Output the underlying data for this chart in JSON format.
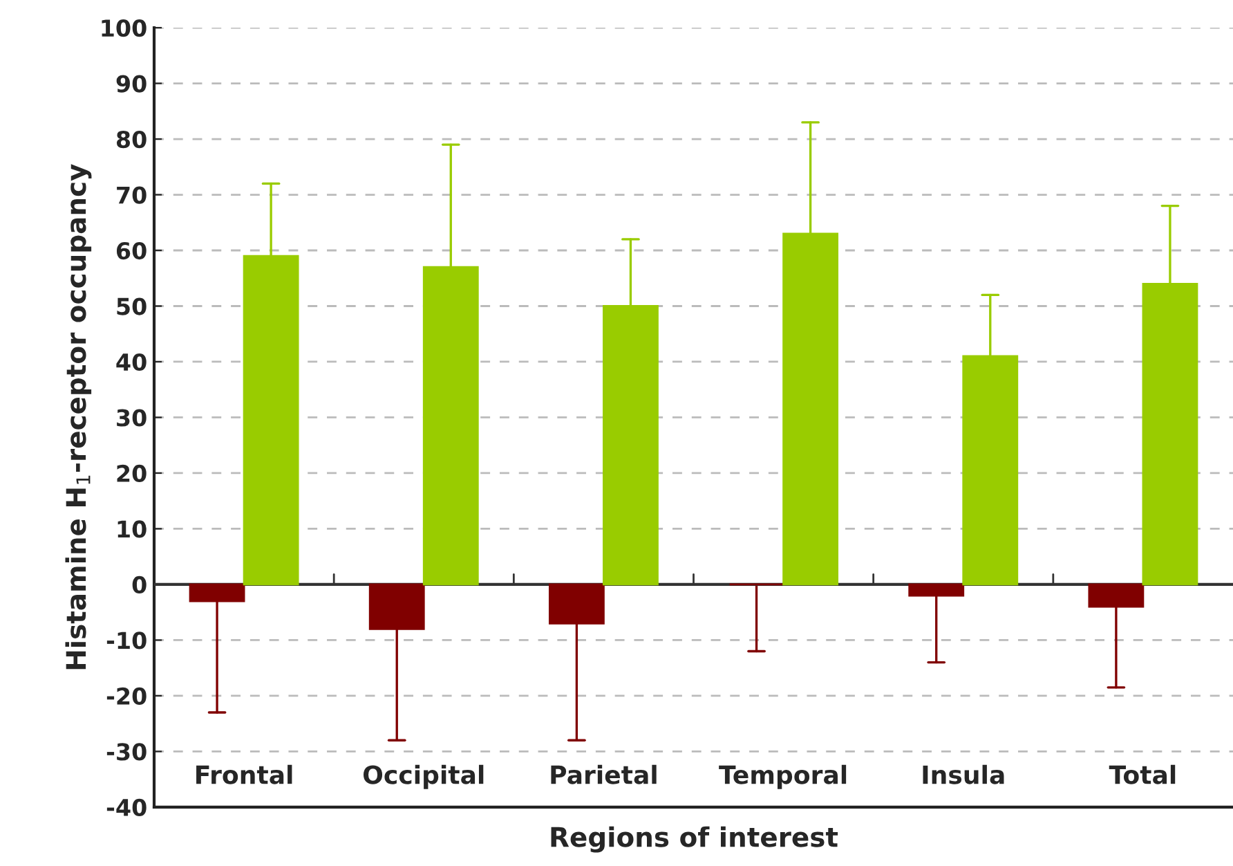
{
  "chart_data": {
    "type": "bar",
    "xlabel": "Regions of interest",
    "ylabel": "Histamine H$_{1}$-receptor occupancy",
    "categories": [
      "Frontal",
      "Occipital",
      "Parietal",
      "Temporal",
      "Insula",
      "Total"
    ],
    "series": [
      {
        "color": "#800000",
        "values": [
          -3,
          -8,
          -7,
          0,
          -2,
          -4
        ],
        "errors": [
          [
            -23,
            -3
          ],
          [
            -28,
            -8
          ],
          [
            -28,
            -7
          ],
          [
            -12,
            0
          ],
          [
            -14,
            -2
          ],
          [
            -18.5,
            -4
          ]
        ]
      },
      {
        "color": "#99cc00",
        "values": [
          59,
          57,
          50,
          63,
          41,
          54
        ],
        "errors": [
          [
            59,
            72
          ],
          [
            57,
            79
          ],
          [
            50,
            62
          ],
          [
            63,
            83
          ],
          [
            41,
            52
          ],
          [
            54,
            68
          ]
        ]
      }
    ],
    "ylim": [
      -40,
      100
    ],
    "yticks": [
      -40,
      -30,
      -20,
      -10,
      0,
      10,
      20,
      30,
      40,
      50,
      60,
      70,
      80,
      90,
      100
    ],
    "grid": "y"
  }
}
